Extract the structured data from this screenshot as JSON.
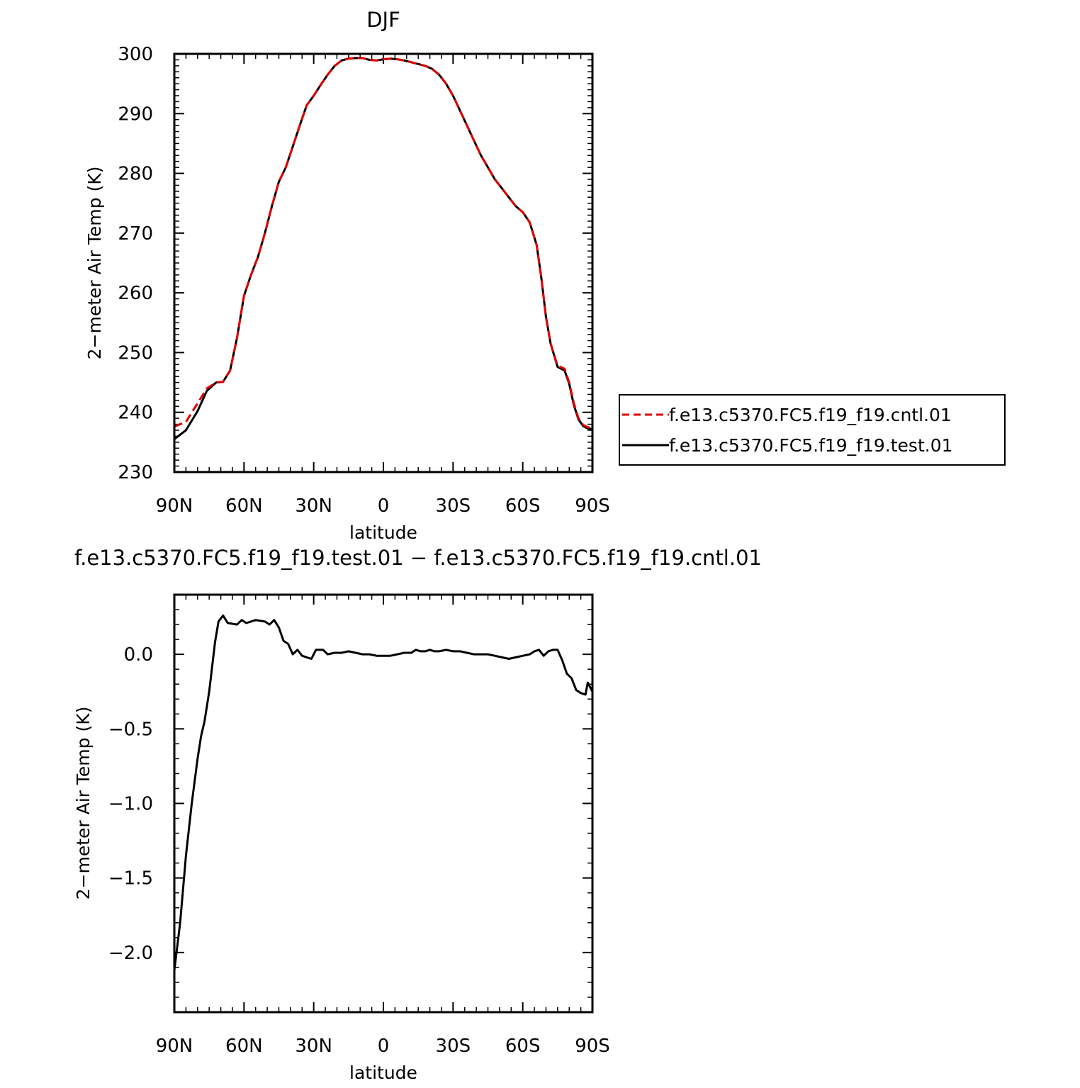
{
  "chart_data": [
    {
      "type": "line",
      "title": "DJF",
      "xlabel": "latitude",
      "ylabel": "2−meter Air Temp (K)",
      "xlim": [
        -90,
        90
      ],
      "ylim": [
        230,
        300
      ],
      "xticks": [
        {
          "value": -90,
          "label": "90N"
        },
        {
          "value": -60,
          "label": "60N"
        },
        {
          "value": -30,
          "label": "30N"
        },
        {
          "value": 0,
          "label": "0"
        },
        {
          "value": 30,
          "label": "30S"
        },
        {
          "value": 60,
          "label": "60S"
        },
        {
          "value": 90,
          "label": "90S"
        }
      ],
      "yticks": [
        {
          "value": 230,
          "label": "230"
        },
        {
          "value": 240,
          "label": "240"
        },
        {
          "value": 250,
          "label": "250"
        },
        {
          "value": 260,
          "label": "260"
        },
        {
          "value": 270,
          "label": "270"
        },
        {
          "value": 280,
          "label": "280"
        },
        {
          "value": 290,
          "label": "290"
        },
        {
          "value": 300,
          "label": "300"
        }
      ],
      "legend_position": "right",
      "series": [
        {
          "name": "f.e13.c5370.FC5.f19_f19.cntl.01",
          "color": "#e00000",
          "dash": "dashed",
          "points": [
            [
              -90,
              237.6
            ],
            [
              -85,
              238.4
            ],
            [
              -80,
              241.5
            ],
            [
              -76,
              244.0
            ],
            [
              -72,
              245.0
            ],
            [
              -69,
              245.1
            ],
            [
              -66,
              247.0
            ],
            [
              -63,
              252.5
            ],
            [
              -60,
              259.5
            ],
            [
              -57,
              263.0
            ],
            [
              -54,
              266.0
            ],
            [
              -51,
              270.0
            ],
            [
              -48,
              274.5
            ],
            [
              -45,
              278.6
            ],
            [
              -42,
              281.0
            ],
            [
              -39,
              284.5
            ],
            [
              -36,
              288.0
            ],
            [
              -33,
              291.4
            ],
            [
              -30,
              293.0
            ],
            [
              -27,
              294.8
            ],
            [
              -24,
              296.5
            ],
            [
              -21,
              298.0
            ],
            [
              -18,
              298.9
            ],
            [
              -15,
              299.2
            ],
            [
              -12,
              299.3
            ],
            [
              -9,
              299.3
            ],
            [
              -6,
              299.0
            ],
            [
              -3,
              298.9
            ],
            [
              0,
              299.1
            ],
            [
              3,
              299.2
            ],
            [
              6,
              299.1
            ],
            [
              9,
              298.9
            ],
            [
              12,
              298.6
            ],
            [
              15,
              298.3
            ],
            [
              18,
              298.0
            ],
            [
              21,
              297.5
            ],
            [
              24,
              296.5
            ],
            [
              27,
              295.0
            ],
            [
              30,
              293.0
            ],
            [
              33,
              290.5
            ],
            [
              36,
              288.0
            ],
            [
              39,
              285.5
            ],
            [
              42,
              283.0
            ],
            [
              45,
              281.0
            ],
            [
              48,
              279.0
            ],
            [
              51,
              277.5
            ],
            [
              54,
              276.0
            ],
            [
              57,
              274.5
            ],
            [
              60,
              273.5
            ],
            [
              63,
              271.8
            ],
            [
              66,
              268.0
            ],
            [
              68,
              262.5
            ],
            [
              70,
              256.0
            ],
            [
              72,
              251.5
            ],
            [
              75,
              247.8
            ],
            [
              78,
              247.3
            ],
            [
              80,
              245.0
            ],
            [
              82,
              241.5
            ],
            [
              84,
              239.0
            ],
            [
              86,
              237.9
            ],
            [
              88,
              237.5
            ],
            [
              90,
              237.4
            ]
          ]
        },
        {
          "name": "f.e13.c5370.FC5.f19_f19.test.01",
          "color": "#000000",
          "dash": "solid",
          "points": [
            [
              -90,
              235.5
            ],
            [
              -85,
              237.0
            ],
            [
              -80,
              240.2
            ],
            [
              -76,
              243.6
            ],
            [
              -72,
              245.0
            ],
            [
              -69,
              245.1
            ],
            [
              -66,
              247.0
            ],
            [
              -63,
              252.5
            ],
            [
              -60,
              259.5
            ],
            [
              -57,
              263.0
            ],
            [
              -54,
              266.0
            ],
            [
              -51,
              270.0
            ],
            [
              -48,
              274.5
            ],
            [
              -45,
              278.6
            ],
            [
              -42,
              281.0
            ],
            [
              -39,
              284.5
            ],
            [
              -36,
              288.0
            ],
            [
              -33,
              291.4
            ],
            [
              -30,
              293.0
            ],
            [
              -27,
              294.8
            ],
            [
              -24,
              296.5
            ],
            [
              -21,
              298.0
            ],
            [
              -18,
              298.9
            ],
            [
              -15,
              299.2
            ],
            [
              -12,
              299.3
            ],
            [
              -9,
              299.3
            ],
            [
              -6,
              299.0
            ],
            [
              -3,
              298.9
            ],
            [
              0,
              299.1
            ],
            [
              3,
              299.2
            ],
            [
              6,
              299.1
            ],
            [
              9,
              298.9
            ],
            [
              12,
              298.6
            ],
            [
              15,
              298.3
            ],
            [
              18,
              298.0
            ],
            [
              21,
              297.5
            ],
            [
              24,
              296.5
            ],
            [
              27,
              295.0
            ],
            [
              30,
              293.0
            ],
            [
              33,
              290.5
            ],
            [
              36,
              288.0
            ],
            [
              39,
              285.5
            ],
            [
              42,
              283.0
            ],
            [
              45,
              281.0
            ],
            [
              48,
              279.0
            ],
            [
              51,
              277.5
            ],
            [
              54,
              276.0
            ],
            [
              57,
              274.5
            ],
            [
              60,
              273.5
            ],
            [
              63,
              271.8
            ],
            [
              66,
              268.0
            ],
            [
              68,
              262.5
            ],
            [
              70,
              256.0
            ],
            [
              72,
              251.5
            ],
            [
              75,
              247.6
            ],
            [
              78,
              247.0
            ],
            [
              80,
              244.8
            ],
            [
              82,
              241.2
            ],
            [
              84,
              238.8
            ],
            [
              86,
              237.7
            ],
            [
              88,
              237.3
            ],
            [
              90,
              237.2
            ]
          ]
        }
      ]
    },
    {
      "type": "line",
      "title": "f.e13.c5370.FC5.f19_f19.test.01 − f.e13.c5370.FC5.f19_f19.cntl.01",
      "xlabel": "latitude",
      "ylabel": "2−meter Air Temp (K)",
      "xlim": [
        -90,
        90
      ],
      "ylim": [
        -2.4,
        0.4
      ],
      "xticks": [
        {
          "value": -90,
          "label": "90N"
        },
        {
          "value": -60,
          "label": "60N"
        },
        {
          "value": -30,
          "label": "30N"
        },
        {
          "value": 0,
          "label": "0"
        },
        {
          "value": 30,
          "label": "30S"
        },
        {
          "value": 60,
          "label": "60S"
        },
        {
          "value": 90,
          "label": "90S"
        }
      ],
      "yticks": [
        {
          "value": 0.0,
          "label": "0.0"
        },
        {
          "value": -0.5,
          "label": "−0.5"
        },
        {
          "value": -1.0,
          "label": "−1.0"
        },
        {
          "value": -1.5,
          "label": "−1.5"
        },
        {
          "value": -2.0,
          "label": "−2.0"
        }
      ],
      "series": [
        {
          "color": "#000000",
          "dash": "solid",
          "points": [
            [
              -90,
              -2.12
            ],
            [
              -87.5,
              -1.8
            ],
            [
              -85,
              -1.35
            ],
            [
              -82.5,
              -1.0
            ],
            [
              -80,
              -0.7
            ],
            [
              -78.5,
              -0.55
            ],
            [
              -77,
              -0.45
            ],
            [
              -75,
              -0.25
            ],
            [
              -72.5,
              0.08
            ],
            [
              -71,
              0.22
            ],
            [
              -69,
              0.26
            ],
            [
              -67,
              0.21
            ],
            [
              -63,
              0.2
            ],
            [
              -61,
              0.23
            ],
            [
              -59,
              0.21
            ],
            [
              -55,
              0.23
            ],
            [
              -51,
              0.22
            ],
            [
              -49,
              0.2
            ],
            [
              -47,
              0.23
            ],
            [
              -45,
              0.18
            ],
            [
              -43,
              0.09
            ],
            [
              -41,
              0.07
            ],
            [
              -39,
              0.0
            ],
            [
              -37,
              0.03
            ],
            [
              -35,
              -0.01
            ],
            [
              -33,
              -0.02
            ],
            [
              -31,
              -0.03
            ],
            [
              -29,
              0.03
            ],
            [
              -26,
              0.03
            ],
            [
              -24,
              0.0
            ],
            [
              -21,
              0.01
            ],
            [
              -18,
              0.01
            ],
            [
              -15,
              0.02
            ],
            [
              -12,
              0.01
            ],
            [
              -9,
              0.0
            ],
            [
              -6,
              0.0
            ],
            [
              -3,
              -0.01
            ],
            [
              0,
              -0.01
            ],
            [
              3,
              -0.01
            ],
            [
              6,
              0.0
            ],
            [
              9,
              0.01
            ],
            [
              12,
              0.01
            ],
            [
              14,
              0.03
            ],
            [
              16,
              0.02
            ],
            [
              18,
              0.02
            ],
            [
              20,
              0.03
            ],
            [
              22,
              0.02
            ],
            [
              24,
              0.02
            ],
            [
              27,
              0.03
            ],
            [
              30,
              0.02
            ],
            [
              33,
              0.02
            ],
            [
              36,
              0.01
            ],
            [
              39,
              0.0
            ],
            [
              42,
              0.0
            ],
            [
              45,
              0.0
            ],
            [
              48,
              -0.01
            ],
            [
              51,
              -0.02
            ],
            [
              54,
              -0.03
            ],
            [
              57,
              -0.02
            ],
            [
              60,
              -0.01
            ],
            [
              63,
              0.0
            ],
            [
              65,
              0.02
            ],
            [
              67,
              0.03
            ],
            [
              69,
              -0.01
            ],
            [
              71,
              0.02
            ],
            [
              73,
              0.03
            ],
            [
              75,
              0.03
            ],
            [
              77,
              -0.04
            ],
            [
              79,
              -0.13
            ],
            [
              81,
              -0.16
            ],
            [
              83,
              -0.24
            ],
            [
              85,
              -0.26
            ],
            [
              87,
              -0.27
            ],
            [
              88,
              -0.19
            ],
            [
              89,
              -0.22
            ],
            [
              90,
              -0.25
            ]
          ]
        }
      ]
    }
  ]
}
